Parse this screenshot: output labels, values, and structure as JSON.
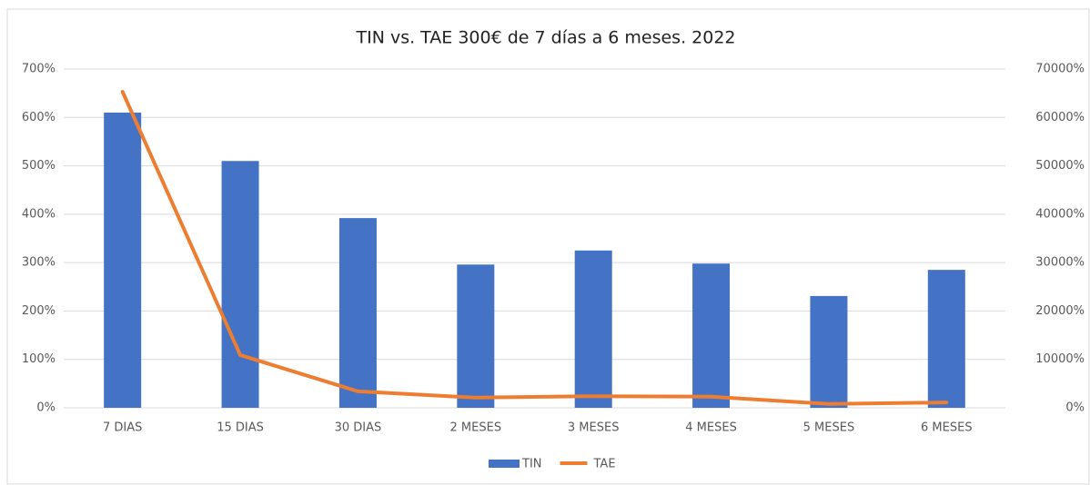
{
  "chart_data": {
    "type": "bar-line",
    "title": "TIN vs. TAE 300€ de 7 días a 6 meses. 2022",
    "categories": [
      "7 DIAS",
      "15 DIAS",
      "30 DIAS",
      "2 MESES",
      "3 MESES",
      "4 MESES",
      "5 MESES",
      "6 MESES"
    ],
    "series": [
      {
        "name": "TIN",
        "type": "bar",
        "color": "#4472c4",
        "values": [
          610,
          510,
          392,
          296,
          325,
          298,
          231,
          285
        ]
      },
      {
        "name": "TAE",
        "type": "line",
        "color": "#ed7d31",
        "axis": "y2",
        "values": [
          65300,
          10900,
          3400,
          2100,
          2400,
          2300,
          800,
          1100
        ]
      }
    ],
    "ylim": [
      0,
      700
    ],
    "yticks": [
      {
        "value": 0,
        "label": "0%"
      },
      {
        "value": 100,
        "label": "100%"
      },
      {
        "value": 200,
        "label": "200%"
      },
      {
        "value": 300,
        "label": "300%"
      },
      {
        "value": 400,
        "label": "400%"
      },
      {
        "value": 500,
        "label": "500%"
      },
      {
        "value": 600,
        "label": "600%"
      },
      {
        "value": 700,
        "label": "700%"
      }
    ],
    "y2lim": [
      0,
      70000
    ],
    "y2ticks": [
      {
        "value": 0,
        "label": "0%"
      },
      {
        "value": 10000,
        "label": "10000%"
      },
      {
        "value": 20000,
        "label": "20000%"
      },
      {
        "value": 30000,
        "label": "30000%"
      },
      {
        "value": 40000,
        "label": "40000%"
      },
      {
        "value": 50000,
        "label": "50000%"
      },
      {
        "value": 60000,
        "label": "60000%"
      },
      {
        "value": 70000,
        "label": "70000%"
      }
    ],
    "grid": true,
    "legend": "bottom"
  }
}
